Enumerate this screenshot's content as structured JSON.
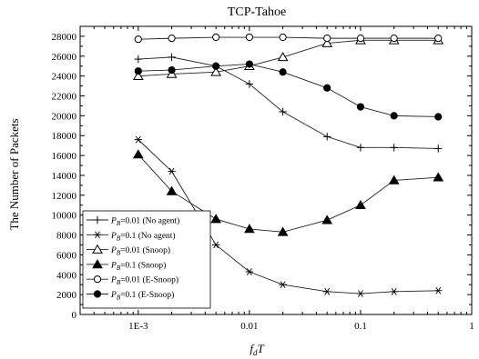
{
  "chart_data": {
    "type": "line",
    "title": "TCP-Tahoe",
    "xlabel": "f",
    "xlabel_sub": "d",
    "xlabel_tail": "T",
    "ylabel": "The Number of Packets",
    "xscale": "log",
    "xlim": [
      0.0003,
      1
    ],
    "ylim": [
      0,
      29000
    ],
    "xticks": [
      0.001,
      0.01,
      0.1,
      1
    ],
    "xtick_labels": [
      "1E-3",
      "0.01",
      "0.1",
      "1"
    ],
    "yticks": [
      0,
      2000,
      4000,
      6000,
      8000,
      10000,
      12000,
      14000,
      16000,
      18000,
      20000,
      22000,
      24000,
      26000,
      28000
    ],
    "ytick_labels": [
      "0",
      "2000",
      "4000",
      "6000",
      "8000",
      "10000",
      "12000",
      "14000",
      "16000",
      "18000",
      "20000",
      "22000",
      "24000",
      "26000",
      "28000"
    ],
    "grid": false,
    "legend_position": "bottom-left",
    "x": [
      0.001,
      0.002,
      0.005,
      0.01,
      0.02,
      0.05,
      0.1,
      0.2,
      0.5
    ],
    "series": [
      {
        "name_pre": "P",
        "name_sub": "B",
        "name_post": "=0.01  (No agent)",
        "marker": "plus",
        "values": [
          25700,
          25900,
          25000,
          23200,
          20400,
          17900,
          16800,
          16800,
          16700
        ]
      },
      {
        "name_pre": "P",
        "name_sub": "B",
        "name_post": "=0.1    (No agent)",
        "marker": "asterisk",
        "values": [
          17600,
          14400,
          7000,
          4300,
          3000,
          2300,
          2100,
          2300,
          2400
        ]
      },
      {
        "name_pre": "P",
        "name_sub": "B",
        "name_post": "=0.01  (Snoop)",
        "marker": "triangle-open",
        "values": [
          24000,
          24200,
          24400,
          25000,
          25900,
          27300,
          27600,
          27600,
          27600
        ]
      },
      {
        "name_pre": "P",
        "name_sub": "B",
        "name_post": "=0.1    (Snoop)",
        "marker": "triangle-filled",
        "values": [
          16100,
          12400,
          9600,
          8600,
          8300,
          9500,
          11000,
          13500,
          13800
        ]
      },
      {
        "name_pre": "P",
        "name_sub": "B",
        "name_post": "=0.01  (E-Snoop)",
        "marker": "circle-open",
        "values": [
          27700,
          27800,
          27900,
          27900,
          27900,
          27800,
          27800,
          27800,
          27800
        ]
      },
      {
        "name_pre": "P",
        "name_sub": "B",
        "name_post": "=0.1    (E-Snoop)",
        "marker": "circle-filled",
        "values": [
          24500,
          24600,
          25000,
          25200,
          24400,
          22800,
          20900,
          20000,
          19900
        ]
      }
    ]
  }
}
